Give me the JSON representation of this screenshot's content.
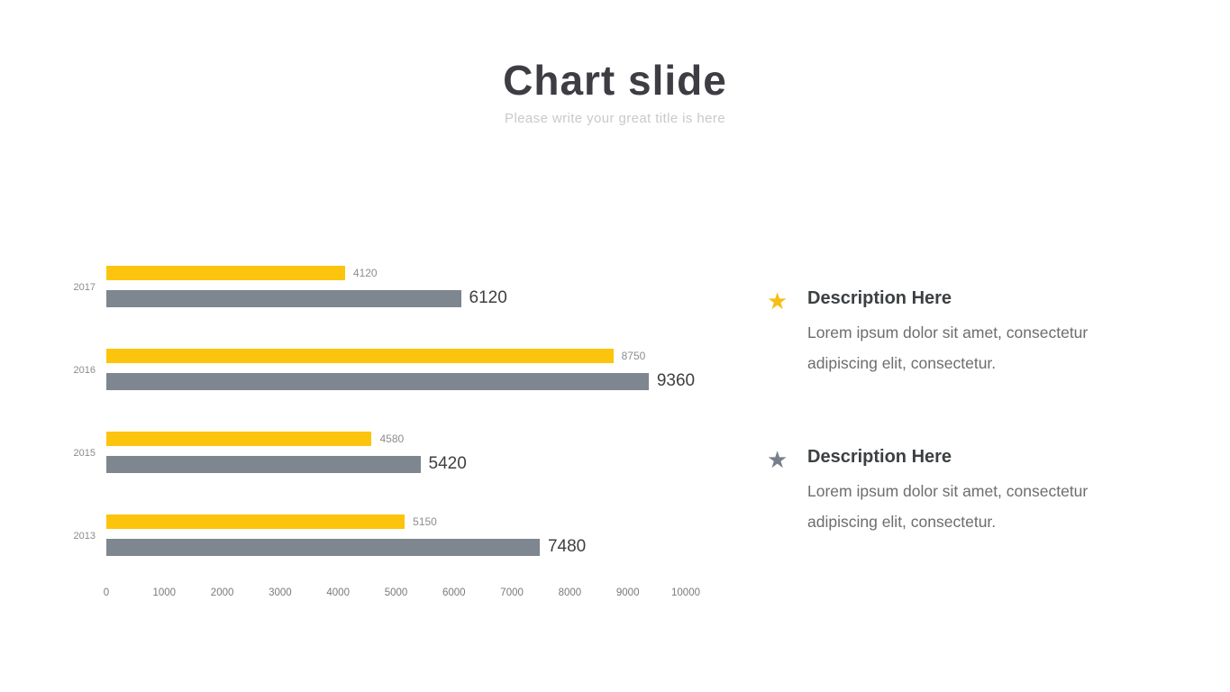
{
  "slide": {
    "title": "Chart slide",
    "subtitle": "Please write your great title is here"
  },
  "chart_data": {
    "type": "bar",
    "orientation": "horizontal",
    "title": "",
    "xlabel": "",
    "ylabel": "",
    "categories": [
      "2017",
      "2016",
      "2015",
      "2013"
    ],
    "series": [
      {
        "name": "yellow-series",
        "color": "#FCC40D",
        "values": [
          4120,
          8750,
          4580,
          5150
        ]
      },
      {
        "name": "gray-series",
        "color": "#7E868F",
        "values": [
          6120,
          9360,
          5420,
          7480
        ]
      }
    ],
    "xlim": [
      0,
      10000
    ],
    "x_ticks": [
      0,
      1000,
      2000,
      3000,
      4000,
      5000,
      6000,
      7000,
      8000,
      9000,
      10000
    ],
    "grid": false,
    "legend": "none"
  },
  "descriptions": [
    {
      "icon": "star-icon",
      "icon_color": "#F7BE16",
      "title": "Description Here",
      "body": "Lorem ipsum dolor sit amet, consectetur adipiscing elit, consectetur."
    },
    {
      "icon": "star-icon",
      "icon_color": "#77808A",
      "title": "Description Here",
      "body": "Lorem ipsum dolor sit amet, consectetur adipiscing elit, consectetur."
    }
  ],
  "theme": {
    "accent_yellow": "#FCC40D",
    "accent_gray": "#7E868F",
    "title_color": "#3D3D43",
    "subtitle_color": "#C9C9C9"
  }
}
